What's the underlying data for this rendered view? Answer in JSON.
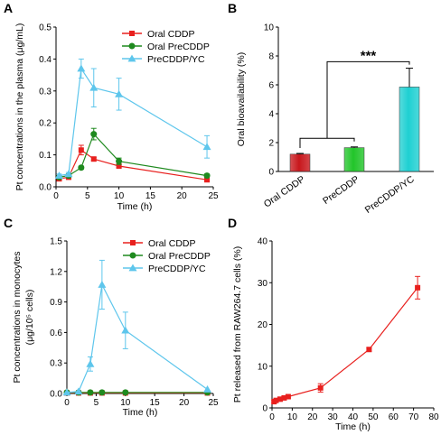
{
  "colors": {
    "oral_cddp": "#e8201e",
    "oral_precddp": "#1f8a1f",
    "precddp_yc": "#5ec6ec",
    "bar_oral_cddp": "#c8171c",
    "bar_precddp": "#22c52a",
    "bar_precddp_yc": "#1fd0d2"
  },
  "chart_data": [
    {
      "panel": "A",
      "type": "line",
      "xlabel": "Time (h)",
      "ylabel": "Pt concentrations in the plasma (μg/mL)",
      "xlim": [
        0,
        25
      ],
      "ylim": [
        0,
        0.5
      ],
      "xticks": [
        "0",
        "5",
        "10",
        "15",
        "20",
        "25"
      ],
      "yticks": [
        "0.0",
        "0.1",
        "0.2",
        "0.3",
        "0.4",
        "0.5"
      ],
      "legend_position": "top-right",
      "series": [
        {
          "name": "Oral CDDP",
          "marker": "square",
          "color": "#e8201e",
          "x": [
            0.5,
            2,
            4,
            6,
            10,
            24
          ],
          "y": [
            0.025,
            0.03,
            0.115,
            0.087,
            0.065,
            0.022
          ],
          "err": [
            0.005,
            0.005,
            0.015,
            0.005,
            0.005,
            0.005
          ]
        },
        {
          "name": "Oral PreCDDP",
          "marker": "circle",
          "color": "#1f8a1f",
          "x": [
            0.5,
            2,
            4,
            6,
            10,
            24
          ],
          "y": [
            0.03,
            0.035,
            0.06,
            0.165,
            0.08,
            0.035
          ],
          "err": [
            0.005,
            0.005,
            0.005,
            0.018,
            0.01,
            0.005
          ]
        },
        {
          "name": "PreCDDP/YC",
          "marker": "triangle",
          "color": "#5ec6ec",
          "x": [
            0.5,
            2,
            4,
            6,
            10,
            24
          ],
          "y": [
            0.035,
            0.04,
            0.37,
            0.31,
            0.29,
            0.125
          ],
          "err": [
            0.005,
            0.005,
            0.03,
            0.06,
            0.05,
            0.035
          ]
        }
      ]
    },
    {
      "panel": "B",
      "type": "bar",
      "ylabel": "Oral bioavailability (%)",
      "ylim": [
        0,
        10
      ],
      "yticks": [
        "0",
        "2",
        "4",
        "6",
        "8",
        "10"
      ],
      "categories": [
        "Oral CDDP",
        "PreCDDP",
        "PreCDDP/YC"
      ],
      "values": [
        1.2,
        1.65,
        5.85
      ],
      "err": [
        0.05,
        0.05,
        1.3
      ],
      "significance": "***"
    },
    {
      "panel": "C",
      "type": "line",
      "xlabel": "Time (h)",
      "ylabel_line1": "Pt concentrations in monocytes",
      "ylabel_line2": "(μg/10⁵ cells)",
      "xlim": [
        0,
        25
      ],
      "ylim": [
        0,
        1.5
      ],
      "xticks": [
        "0",
        "5",
        "10",
        "15",
        "20",
        "25"
      ],
      "yticks": [
        "0.0",
        "0.3",
        "0.6",
        "0.9",
        "1.2",
        "1.5"
      ],
      "legend_position": "top-right",
      "series": [
        {
          "name": "Oral CDDP",
          "marker": "square",
          "color": "#e8201e",
          "x": [
            0,
            2,
            4,
            6,
            10,
            24
          ],
          "y": [
            0.005,
            0.005,
            0.005,
            0.005,
            0.005,
            0.005
          ],
          "err": [
            0,
            0,
            0,
            0,
            0,
            0
          ]
        },
        {
          "name": "Oral PreCDDP",
          "marker": "circle",
          "color": "#1f8a1f",
          "x": [
            0,
            2,
            4,
            6,
            10,
            24
          ],
          "y": [
            0.01,
            0.01,
            0.01,
            0.01,
            0.01,
            0.01
          ],
          "err": [
            0,
            0,
            0,
            0,
            0,
            0
          ]
        },
        {
          "name": "PreCDDP/YC",
          "marker": "triangle",
          "color": "#5ec6ec",
          "x": [
            0,
            2,
            4,
            6,
            10,
            24
          ],
          "y": [
            0.01,
            0.02,
            0.29,
            1.07,
            0.62,
            0.04
          ],
          "err": [
            0,
            0,
            0.07,
            0.24,
            0.18,
            0
          ]
        }
      ]
    },
    {
      "panel": "D",
      "type": "line",
      "xlabel": "Time (h)",
      "ylabel": "Pt released from RAW264.7 cells (%)",
      "xlim": [
        0,
        80
      ],
      "ylim": [
        0,
        40
      ],
      "xticks": [
        "0",
        "10",
        "20",
        "30",
        "40",
        "50",
        "60",
        "70",
        "80"
      ],
      "yticks": [
        "0",
        "10",
        "20",
        "30",
        "40"
      ],
      "series": [
        {
          "name": "",
          "marker": "square",
          "color": "#e8201e",
          "x": [
            1,
            2,
            4,
            6,
            8,
            24,
            48,
            72
          ],
          "y": [
            1.5,
            1.8,
            2.1,
            2.4,
            2.7,
            4.8,
            14.0,
            28.8
          ],
          "err": [
            0.3,
            0.3,
            0.3,
            0.3,
            0.3,
            1.0,
            0.4,
            2.7
          ]
        }
      ]
    }
  ]
}
